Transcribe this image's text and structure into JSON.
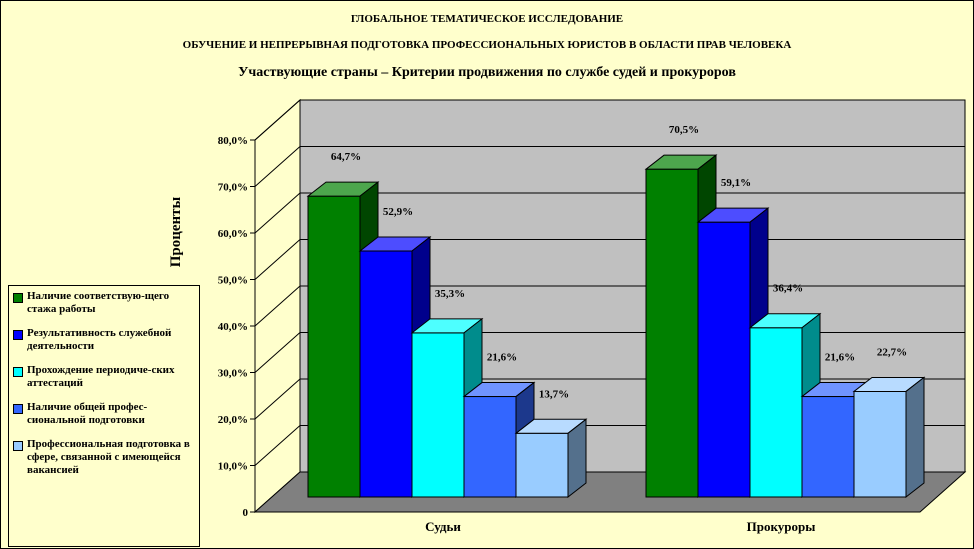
{
  "chart_data": {
    "type": "bar3d",
    "title": "ГЛОБАЛЬНОЕ ТЕМАТИЧЕСКОЕ ИССЛЕДОВАНИЕ",
    "subtitle": "ОБУЧЕНИЕ И НЕПРЕРЫВНАЯ ПОДГОТОВКА ПРОФЕССИОНАЛЬНЫХ ЮРИСТОВ В ОБЛАСТИ ПРАВ ЧЕЛОВЕКА",
    "subtitle2": "Участвующие страны – Критерии продвижения по службе судей и прокуроров",
    "y_label": "Проценты",
    "categories": [
      "Судьи",
      "Прокуроры"
    ],
    "series": [
      {
        "name": "Наличие соответствую-щего стажа работы",
        "color": "#008000",
        "values": [
          64.7,
          70.5
        ],
        "value_labels": [
          "64,7%",
          "70,5%"
        ]
      },
      {
        "name": "Результативность служебной деятельности",
        "color": "#0000ff",
        "values": [
          52.9,
          59.1
        ],
        "value_labels": [
          "52,9%",
          "59,1%"
        ]
      },
      {
        "name": "Прохождение периодиче-ских аттестаций",
        "color": "#00ffff",
        "values": [
          35.3,
          36.4
        ],
        "value_labels": [
          "35,3%",
          "36,4%"
        ]
      },
      {
        "name": "Наличие общей профес-сиональной подготовки",
        "color": "#3366ff",
        "values": [
          21.6,
          21.6
        ],
        "value_labels": [
          "21,6%",
          "21,6%"
        ]
      },
      {
        "name": "Профессиональная подготовка в сфере, связанной с имеющейся вакансией",
        "color": "#99ccff",
        "values": [
          13.7,
          22.7
        ],
        "value_labels": [
          "13,7%",
          "22,7%"
        ]
      }
    ],
    "ylim": [
      0,
      80
    ],
    "yticks": [
      0,
      {
        "value": 10,
        "label": "10,0%"
      },
      {
        "value": 20,
        "label": "20,0%"
      },
      {
        "value": 30,
        "label": "30,0%"
      },
      {
        "value": 40,
        "label": "40,0%"
      },
      {
        "value": 50,
        "label": "50,0%"
      },
      {
        "value": 60,
        "label": "60,0%"
      },
      {
        "value": 70,
        "label": "70,0%"
      },
      {
        "value": 80,
        "label": "80,0%"
      }
    ],
    "grid": true
  }
}
